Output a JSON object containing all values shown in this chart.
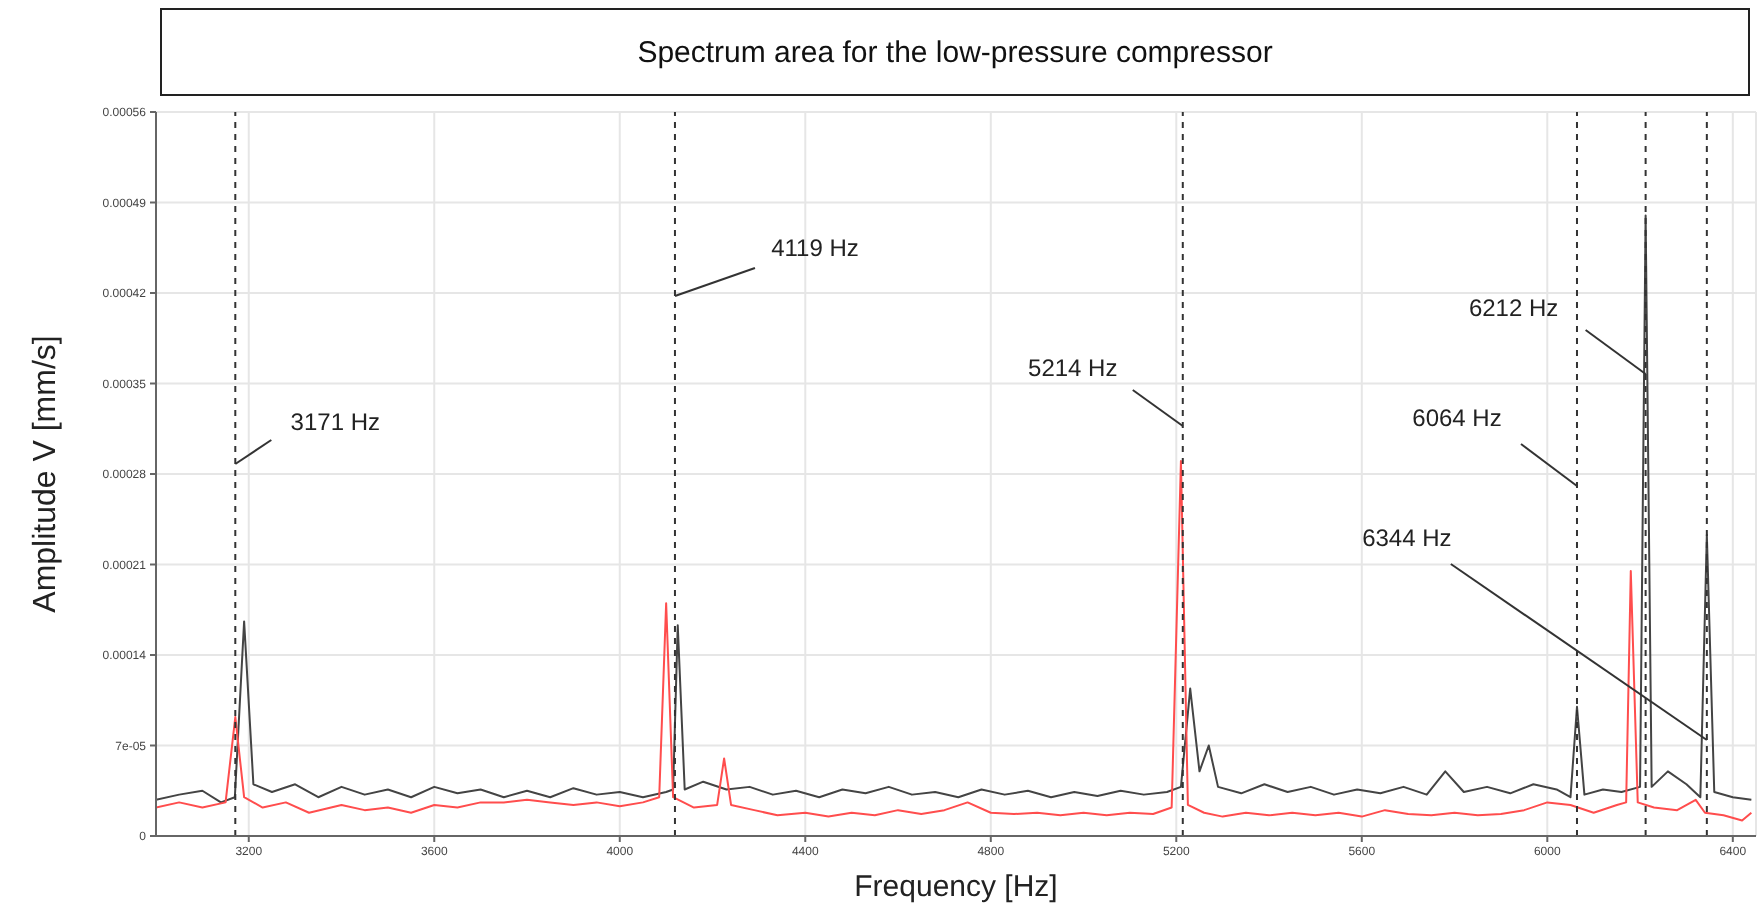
{
  "chart_data": {
    "type": "line",
    "title": "Spectrum area for the low-pressure compressor",
    "xlabel": "Frequency [Hz]",
    "ylabel": "Amplitude V [mm/s]",
    "xlim": [
      3000,
      6450
    ],
    "xticks": [
      3200,
      3600,
      4000,
      4400,
      4800,
      5200,
      5600,
      6000,
      6400
    ],
    "ylim": [
      0,
      0.00056
    ],
    "yticks": [
      0,
      {
        "value": 7e-05,
        "label": "7e-05"
      },
      0.00014,
      0.00021,
      0.00028,
      0.00035,
      0.00042,
      0.00049,
      0.00056
    ],
    "grid": true,
    "legend": false,
    "marker": "none",
    "line_style": "solid",
    "ref_lines": [
      {
        "axis": "x",
        "value": 3171,
        "label": "3171 Hz",
        "color": "#333333",
        "line_style": "dashed"
      },
      {
        "axis": "x",
        "value": 4119,
        "label": "4119 Hz",
        "color": "#333333",
        "line_style": "dashed"
      },
      {
        "axis": "x",
        "value": 5214,
        "label": "5214 Hz",
        "color": "#333333",
        "line_style": "dashed"
      },
      {
        "axis": "x",
        "value": 6064,
        "label": "6064 Hz",
        "color": "#333333",
        "line_style": "dashed"
      },
      {
        "axis": "x",
        "value": 6212,
        "label": "6212 Hz",
        "color": "#333333",
        "line_style": "dashed"
      },
      {
        "axis": "x",
        "value": 6344,
        "label": "6344 Hz",
        "color": "#333333",
        "line_style": "dashed"
      }
    ],
    "series": [
      {
        "color": "#444444",
        "x": [
          3000,
          3050,
          3100,
          3140,
          3170,
          3190,
          3210,
          3250,
          3300,
          3350,
          3400,
          3450,
          3500,
          3550,
          3600,
          3650,
          3700,
          3750,
          3800,
          3850,
          3900,
          3950,
          4000,
          4050,
          4100,
          4115,
          4125,
          4140,
          4180,
          4230,
          4280,
          4330,
          4380,
          4430,
          4480,
          4530,
          4580,
          4630,
          4680,
          4730,
          4780,
          4830,
          4880,
          4930,
          4980,
          5030,
          5080,
          5130,
          5180,
          5210,
          5230,
          5250,
          5270,
          5290,
          5340,
          5390,
          5440,
          5490,
          5540,
          5590,
          5640,
          5690,
          5740,
          5780,
          5820,
          5870,
          5920,
          5970,
          6020,
          6050,
          6064,
          6080,
          6120,
          6160,
          6200,
          6212,
          6225,
          6260,
          6300,
          6330,
          6344,
          6360,
          6400,
          6440
        ],
        "values": [
          2.8e-05,
          3.2e-05,
          3.5e-05,
          2.6e-05,
          3e-05,
          0.000166,
          4e-05,
          3.4e-05,
          4e-05,
          3e-05,
          3.8e-05,
          3.2e-05,
          3.6e-05,
          3e-05,
          3.8e-05,
          3.3e-05,
          3.6e-05,
          3e-05,
          3.5e-05,
          3e-05,
          3.7e-05,
          3.2e-05,
          3.4e-05,
          3e-05,
          3.4e-05,
          3.6e-05,
          0.000163,
          3.6e-05,
          4.2e-05,
          3.6e-05,
          3.8e-05,
          3.2e-05,
          3.5e-05,
          3e-05,
          3.6e-05,
          3.3e-05,
          3.8e-05,
          3.2e-05,
          3.4e-05,
          3e-05,
          3.6e-05,
          3.2e-05,
          3.5e-05,
          3e-05,
          3.4e-05,
          3.1e-05,
          3.5e-05,
          3.2e-05,
          3.4e-05,
          3.8e-05,
          0.000114,
          5e-05,
          7e-05,
          3.8e-05,
          3.3e-05,
          4e-05,
          3.4e-05,
          3.8e-05,
          3.2e-05,
          3.6e-05,
          3.3e-05,
          3.8e-05,
          3.2e-05,
          5e-05,
          3.4e-05,
          3.8e-05,
          3.3e-05,
          4e-05,
          3.6e-05,
          3e-05,
          0.0001,
          3.2e-05,
          3.6e-05,
          3.4e-05,
          3.8e-05,
          0.00048,
          3.8e-05,
          5e-05,
          4e-05,
          3e-05,
          0.000233,
          3.4e-05,
          3e-05,
          2.8e-05
        ]
      },
      {
        "color": "#ff4d4d",
        "x": [
          3000,
          3050,
          3100,
          3150,
          3171,
          3190,
          3230,
          3280,
          3330,
          3400,
          3450,
          3500,
          3550,
          3600,
          3650,
          3700,
          3750,
          3800,
          3850,
          3900,
          3950,
          4000,
          4050,
          4085,
          4100,
          4115,
          4160,
          4210,
          4225,
          4240,
          4290,
          4340,
          4400,
          4450,
          4500,
          4550,
          4600,
          4650,
          4700,
          4750,
          4800,
          4850,
          4900,
          4950,
          5000,
          5050,
          5100,
          5150,
          5190,
          5210,
          5225,
          5260,
          5300,
          5350,
          5400,
          5450,
          5500,
          5550,
          5600,
          5650,
          5700,
          5750,
          5800,
          5850,
          5900,
          5950,
          6000,
          6050,
          6100,
          6150,
          6170,
          6180,
          6195,
          6230,
          6280,
          6320,
          6340,
          6380,
          6420,
          6440
        ],
        "values": [
          2.2e-05,
          2.6e-05,
          2.2e-05,
          2.6e-05,
          9.2e-05,
          3e-05,
          2.2e-05,
          2.6e-05,
          1.8e-05,
          2.4e-05,
          2e-05,
          2.2e-05,
          1.8e-05,
          2.4e-05,
          2.2e-05,
          2.6e-05,
          2.6e-05,
          2.8e-05,
          2.6e-05,
          2.4e-05,
          2.6e-05,
          2.3e-05,
          2.6e-05,
          3e-05,
          0.00018,
          3e-05,
          2.2e-05,
          2.4e-05,
          6e-05,
          2.4e-05,
          2e-05,
          1.6e-05,
          1.8e-05,
          1.5e-05,
          1.8e-05,
          1.6e-05,
          2e-05,
          1.7e-05,
          2e-05,
          2.6e-05,
          1.8e-05,
          1.7e-05,
          1.8e-05,
          1.6e-05,
          1.8e-05,
          1.6e-05,
          1.8e-05,
          1.7e-05,
          2.2e-05,
          0.00029,
          2.4e-05,
          1.8e-05,
          1.5e-05,
          1.8e-05,
          1.6e-05,
          1.8e-05,
          1.6e-05,
          1.8e-05,
          1.5e-05,
          2e-05,
          1.7e-05,
          1.6e-05,
          1.8e-05,
          1.6e-05,
          1.7e-05,
          2e-05,
          2.6e-05,
          2.4e-05,
          1.8e-05,
          2.4e-05,
          2.6e-05,
          0.000205,
          2.6e-05,
          2.2e-05,
          2e-05,
          2.8e-05,
          1.8e-05,
          1.6e-05,
          1.2e-05,
          1.8e-05
        ]
      }
    ]
  }
}
